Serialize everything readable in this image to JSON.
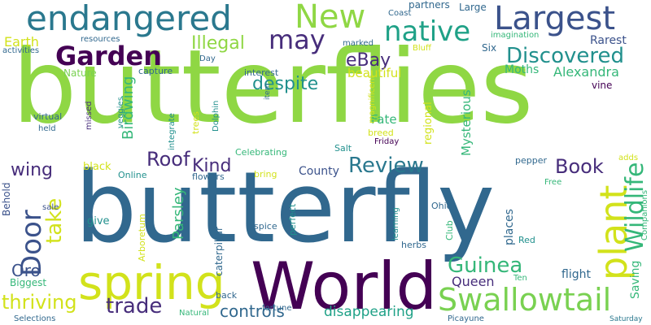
{
  "word_cloud": {
    "background": "#ffffff",
    "palette": {
      "yellow": "#d2e21b",
      "green": "#8fd744",
      "lightgreen": "#79d151",
      "teal": "#21908d",
      "seagreen": "#35b779",
      "blue": "#31688e",
      "slate": "#3b528b",
      "purple": "#440154",
      "violet": "#472d7b",
      "steel": "#2a788e",
      "aqua": "#1fa187"
    },
    "words": [
      {
        "text": "butterflies",
        "color": "green"
      },
      {
        "text": "butterfly",
        "color": "blue"
      },
      {
        "text": "World",
        "color": "purple"
      },
      {
        "text": "spring",
        "color": "yellow"
      },
      {
        "text": "endangered",
        "color": "steel"
      },
      {
        "text": "Largest",
        "color": "slate"
      },
      {
        "text": "Swallowtail",
        "color": "lightgreen"
      },
      {
        "text": "New",
        "color": "green"
      },
      {
        "text": "native",
        "color": "aqua"
      },
      {
        "text": "may",
        "color": "violet"
      },
      {
        "text": "Garden",
        "color": "purple"
      },
      {
        "text": "plant",
        "color": "yellow"
      },
      {
        "text": "Door",
        "color": "slate"
      },
      {
        "text": "Wildlife",
        "color": "seagreen"
      },
      {
        "text": "Discovered",
        "color": "teal"
      },
      {
        "text": "Review",
        "color": "steel"
      },
      {
        "text": "Guinea",
        "color": "seagreen"
      },
      {
        "text": "Book",
        "color": "violet"
      },
      {
        "text": "Roof",
        "color": "violet"
      },
      {
        "text": "thriving",
        "color": "yellow"
      },
      {
        "text": "trade",
        "color": "violet"
      },
      {
        "text": "controls",
        "color": "blue"
      },
      {
        "text": "take",
        "color": "yellow"
      },
      {
        "text": "despite",
        "color": "teal"
      },
      {
        "text": "eBay",
        "color": "violet"
      },
      {
        "text": "Illegal",
        "color": "green"
      },
      {
        "text": "Kind",
        "color": "violet"
      },
      {
        "text": "Alexandra",
        "color": "seagreen"
      },
      {
        "text": "Oro",
        "color": "slate"
      },
      {
        "text": "Queen",
        "color": "violet"
      },
      {
        "text": "disappearing",
        "color": "aqua"
      },
      {
        "text": "wing",
        "color": "violet"
      },
      {
        "text": "Parsley",
        "color": "seagreen"
      },
      {
        "text": "Earth",
        "color": "yellow"
      },
      {
        "text": "Birdwing",
        "color": "seagreen"
      },
      {
        "text": "beautiful",
        "color": "yellow"
      },
      {
        "text": "Mysterious",
        "color": "seagreen"
      },
      {
        "text": "Fate",
        "color": "seagreen"
      },
      {
        "text": "Moths",
        "color": "seagreen"
      },
      {
        "text": "County",
        "color": "slate"
      },
      {
        "text": "Biggest",
        "color": "seagreen"
      },
      {
        "text": "Saving",
        "color": "seagreen"
      },
      {
        "text": "regional",
        "color": "yellow"
      },
      {
        "text": "flight",
        "color": "blue"
      },
      {
        "text": "places",
        "color": "blue"
      },
      {
        "text": "Rarest",
        "color": "slate"
      },
      {
        "text": "Large",
        "color": "blue"
      },
      {
        "text": "partners",
        "color": "blue"
      },
      {
        "text": "Nature",
        "color": "lightgreen"
      },
      {
        "text": "Six",
        "color": "blue"
      },
      {
        "text": "capture",
        "color": "blue"
      },
      {
        "text": "black",
        "color": "yellow"
      },
      {
        "text": "give",
        "color": "teal"
      },
      {
        "text": "caterpillar",
        "color": "blue"
      },
      {
        "text": "Behold",
        "color": "slate"
      },
      {
        "text": "Online",
        "color": "teal"
      },
      {
        "text": "flowers",
        "color": "blue"
      },
      {
        "text": "bring",
        "color": "yellow"
      },
      {
        "text": "sale",
        "color": "slate"
      },
      {
        "text": "spice",
        "color": "blue"
      },
      {
        "text": "perfect",
        "color": "teal"
      },
      {
        "text": "learning",
        "color": "teal"
      },
      {
        "text": "herbs",
        "color": "blue"
      },
      {
        "text": "Ohio",
        "color": "blue"
      },
      {
        "text": "Club",
        "color": "seagreen"
      },
      {
        "text": "Red",
        "color": "teal"
      },
      {
        "text": "Ten",
        "color": "seagreen"
      },
      {
        "text": "Companions",
        "color": "seagreen"
      },
      {
        "text": "Free",
        "color": "seagreen"
      },
      {
        "text": "adds",
        "color": "yellow"
      },
      {
        "text": "pepper",
        "color": "blue"
      },
      {
        "text": "vine",
        "color": "purple"
      },
      {
        "text": "Selections",
        "color": "blue"
      },
      {
        "text": "Natural",
        "color": "seagreen"
      },
      {
        "text": "fortune",
        "color": "blue"
      },
      {
        "text": "back",
        "color": "blue"
      },
      {
        "text": "Picayune",
        "color": "blue"
      },
      {
        "text": "Saturday",
        "color": "steel"
      },
      {
        "text": "Celebrating",
        "color": "seagreen"
      },
      {
        "text": "Salt",
        "color": "teal"
      },
      {
        "text": "breed",
        "color": "yellow"
      },
      {
        "text": "Friday",
        "color": "purple"
      },
      {
        "text": "trees",
        "color": "yellow"
      },
      {
        "text": "Dolphin",
        "color": "teal"
      },
      {
        "text": "magnificent",
        "color": "yellow"
      },
      {
        "text": "integrate",
        "color": "teal"
      },
      {
        "text": "veggies",
        "color": "teal"
      },
      {
        "text": "missed",
        "color": "violet"
      },
      {
        "text": "virtual",
        "color": "blue"
      },
      {
        "text": "held",
        "color": "blue"
      },
      {
        "text": "item",
        "color": "blue"
      },
      {
        "text": "interest",
        "color": "blue"
      },
      {
        "text": "Day",
        "color": "blue"
      },
      {
        "text": "activities",
        "color": "blue"
      },
      {
        "text": "resources",
        "color": "blue"
      },
      {
        "text": "marked",
        "color": "blue"
      },
      {
        "text": "Bluff",
        "color": "yellow"
      },
      {
        "text": "imagination",
        "color": "seagreen"
      },
      {
        "text": "Coast",
        "color": "blue"
      },
      {
        "text": "Arboretum",
        "color": "yellow"
      }
    ]
  }
}
